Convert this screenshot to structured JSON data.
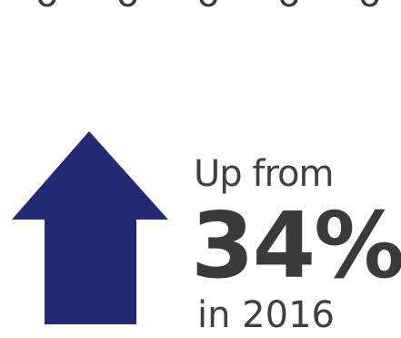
{
  "header_snippet": {
    "text": "~o ~o ~o ~o ~o"
  },
  "stat": {
    "prefix": "Up from",
    "value": "34%",
    "suffix": "in 2016"
  },
  "colors": {
    "arrow": "#232a74",
    "text": "#3a3a3a"
  },
  "icon": {
    "name": "up-arrow-icon"
  }
}
